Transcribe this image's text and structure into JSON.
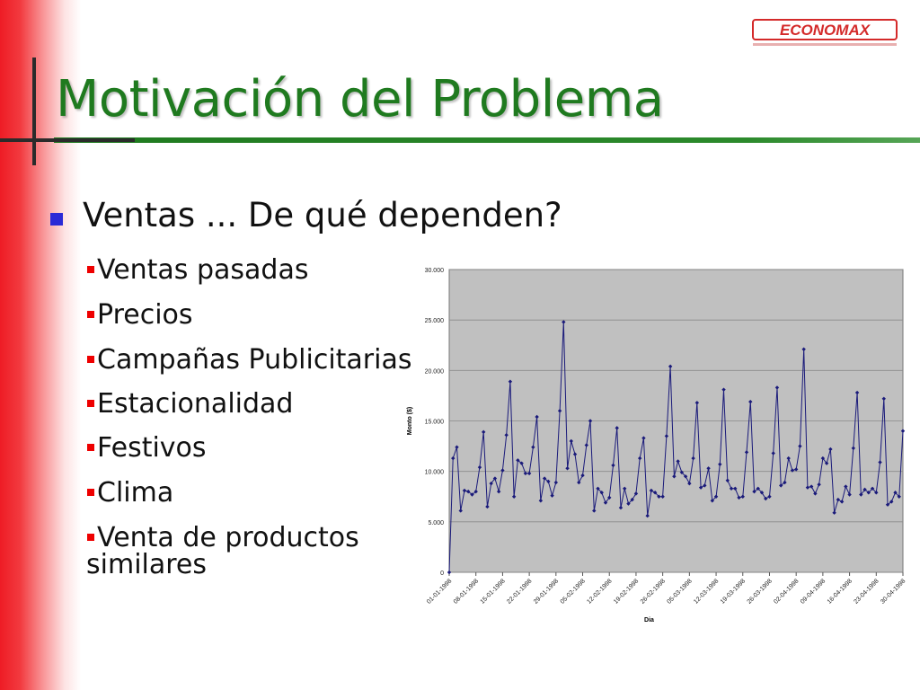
{
  "slide": {
    "title": "Motivación del Problema",
    "logo_text": "ECONOMAX",
    "main_bullet": "Ventas ... De qué dependen?",
    "sub_bullets": [
      "Ventas pasadas",
      "Precios",
      "Campañas Publicitarias",
      "Estacionalidad",
      "Festivos",
      "Clima",
      "Venta de productos",
      "similares"
    ]
  },
  "colors": {
    "title": "#1f7a1f",
    "plot_bg": "#c0c0c0",
    "series": "#1a1a7a",
    "main_bullet": "#2a2ad6",
    "sub_bullet": "#e00000"
  },
  "chart_data": {
    "type": "line",
    "title": "",
    "xlabel": "Dia",
    "ylabel": "Monto ($)",
    "ylim": [
      0,
      30000
    ],
    "y_ticks": [
      "0",
      "5.000",
      "10.000",
      "15.000",
      "20.000",
      "25.000",
      "30.000"
    ],
    "x_tick_labels": [
      "01-01-1998",
      "08-01-1998",
      "15-01-1998",
      "22-01-1998",
      "29-01-1998",
      "05-02-1998",
      "12-02-1998",
      "19-02-1998",
      "26-02-1998",
      "05-03-1998",
      "12-03-1998",
      "19-03-1998",
      "26-03-1998",
      "02-04-1998",
      "09-04-1998",
      "16-04-1998",
      "23-04-1998",
      "30-04-1998"
    ],
    "grid": true,
    "legend": "none",
    "series": [
      {
        "values": [
          0,
          11300,
          12400,
          6100,
          8100,
          8000,
          7700,
          8000,
          10400,
          13900,
          6500,
          8800,
          9300,
          8000,
          10100,
          13600,
          18900,
          7500,
          11100,
          10800,
          9800,
          9800,
          12400,
          15400,
          7100,
          9300,
          9000,
          7600,
          8900,
          16000,
          24800,
          10300,
          13000,
          11700,
          8900,
          9600,
          12600,
          15000,
          6100,
          8300,
          7900,
          6900,
          7400,
          10600,
          14300,
          6400,
          8300,
          6800,
          7200,
          7800,
          11300,
          13300,
          5600,
          8100,
          7900,
          7500,
          7500,
          13500,
          20400,
          9500,
          11000,
          9900,
          9500,
          8800,
          11300,
          16800,
          8400,
          8600,
          10300,
          7100,
          7500,
          10700,
          18100,
          9100,
          8300,
          8300,
          7400,
          7500,
          11900,
          16900,
          8000,
          8300,
          7900,
          7300,
          7500,
          11800,
          18300,
          8600,
          8900,
          11300,
          10100,
          10200,
          12500,
          22100,
          8400,
          8500,
          7800,
          8700,
          11300,
          10800,
          12200,
          5900,
          7200,
          7000,
          8500,
          7700,
          12300,
          17800,
          7700,
          8200,
          7900,
          8300,
          7900,
          10900,
          17200,
          6700,
          7000,
          7900,
          7500,
          14000
        ]
      }
    ]
  }
}
